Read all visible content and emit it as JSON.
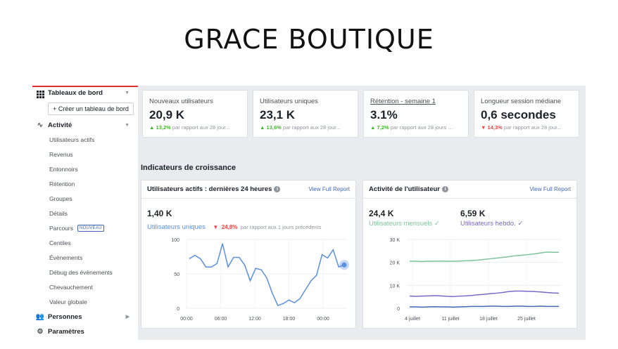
{
  "brand_title": "GRACE BOUTIQUE",
  "sidebar": {
    "dashboards_label": "Tableaux de bord",
    "create_dashboard_label": "+ Créer un tableau de bord",
    "activity_label": "Activité",
    "activity_items": [
      "Utilisateurs actifs",
      "Revenus",
      "Entonnoirs",
      "Rétention",
      "Groupes",
      "Détails",
      "Parcours",
      "Centiles",
      "Évènements",
      "Débug des évènements",
      "Chevauchement",
      "Valeur globale"
    ],
    "new_badge": "NOUVEAU",
    "people_label": "Personnes",
    "settings_label": "Paramètres"
  },
  "kpis": [
    {
      "label": "Nouveaux utilisateurs",
      "value": "20,9 K",
      "change": "13,2%",
      "direction": "up",
      "compare": "par rapport aux 28 jour..."
    },
    {
      "label": "Utilisateurs uniques",
      "value": "23,1 K",
      "change": "13,6%",
      "direction": "up",
      "compare": "par rapport aux 28 jour..."
    },
    {
      "label": "Rétention - semaine 1",
      "value": "3.1%",
      "change": "7,2%",
      "direction": "up",
      "compare": "par rapport aux 28 jours ..."
    },
    {
      "label": "Longueur session médiane",
      "value": "0,6 secondes",
      "change": "14,3%",
      "direction": "down",
      "compare": "par rapport aux 28 jour..."
    }
  ],
  "growth_title": "Indicateurs de croissance",
  "panel_active": {
    "title": "Utilisateurs actifs : dernières 24 heures",
    "link": "View Full Report",
    "value": "1,40 K",
    "series_label": "Utilisateurs uniques",
    "change": "24,8%",
    "compare": "par rapport aux 1 jours précédents"
  },
  "panel_activity": {
    "title": "Activité de l'utilisateur",
    "link": "View Full Report",
    "monthly_value": "24,4 K",
    "monthly_label": "Utilisateurs mensuels ✓",
    "weekly_value": "6,59 K",
    "weekly_label": "Utilisateurs hebdo. ✓"
  },
  "colors": {
    "blue": "#5b8fe0",
    "green": "#7ec39b",
    "purple": "#7b68c9",
    "dark_blue": "#4267b2",
    "up": "#42b72a",
    "down": "#fa3e3e"
  },
  "chart_data": [
    {
      "type": "line",
      "title": "Utilisateurs actifs : dernières 24 heures",
      "x_ticks": [
        "00:00",
        "06:00",
        "12:00",
        "18:00",
        "00:00"
      ],
      "y_ticks": [
        "100",
        "50",
        "0"
      ],
      "ylim": [
        0,
        100
      ],
      "series": [
        {
          "name": "Utilisateurs uniques",
          "values": [
            72,
            77,
            72,
            60,
            60,
            65,
            94,
            60,
            74,
            74,
            63,
            40,
            58,
            56,
            44,
            22,
            4,
            7,
            12,
            8,
            14,
            27,
            40,
            48,
            78,
            73,
            85,
            60,
            63
          ]
        }
      ],
      "grid": true
    },
    {
      "type": "line",
      "title": "Activité de l'utilisateur",
      "x_ticks": [
        "4 juillet",
        "11 juillet",
        "18 juillet",
        "25 juillet"
      ],
      "y_ticks": [
        "30 K",
        "20 K",
        "10 K",
        "0"
      ],
      "ylim": [
        0,
        30
      ],
      "series": [
        {
          "name": "Utilisateurs mensuels",
          "values": [
            20.5,
            20.5,
            20.4,
            20.5,
            20.5,
            20.6,
            20.5,
            20.5,
            20.6,
            20.7,
            20.8,
            21.0,
            21.3,
            21.6,
            21.9,
            22.2,
            22.5,
            22.9,
            23.1,
            23.4,
            23.7,
            24.1,
            24.5,
            24.4,
            24.4
          ]
        },
        {
          "name": "Utilisateurs hebdo.",
          "values": [
            5.3,
            5.2,
            5.3,
            5.4,
            5.5,
            5.4,
            5.2,
            5.1,
            5.3,
            5.4,
            5.6,
            5.9,
            6.1,
            6.4,
            6.6,
            6.9,
            7.3,
            7.5,
            7.5,
            7.4,
            7.3,
            7.1,
            6.9,
            6.7,
            6.6
          ]
        },
        {
          "name": "",
          "values": [
            0.6,
            0.6,
            0.5,
            0.6,
            0.7,
            0.6,
            0.6,
            0.5,
            0.6,
            0.7,
            0.8,
            0.8,
            0.8,
            0.9,
            0.9,
            0.8,
            0.8,
            0.9,
            0.9,
            0.8,
            0.8,
            0.9,
            0.8,
            0.8,
            0.8
          ]
        }
      ],
      "grid": true
    }
  ]
}
